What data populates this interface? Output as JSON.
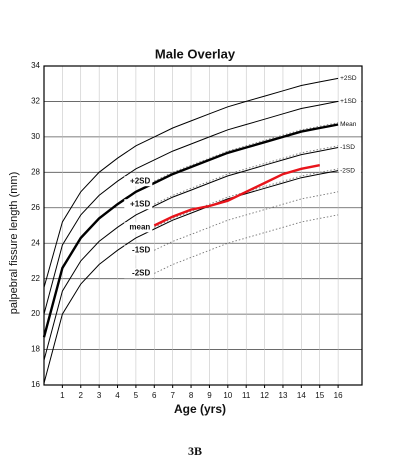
{
  "chart_data": {
    "type": "line",
    "title": "Male Overlay",
    "xlabel": "Age (yrs)",
    "ylabel": "palpebral fissure length (mm)",
    "caption": "3B",
    "x": [
      0,
      1,
      2,
      3,
      4,
      5,
      6,
      7,
      8,
      9,
      10,
      11,
      12,
      13,
      14,
      15,
      16
    ],
    "xlim": [
      0,
      17.3
    ],
    "xticks": [
      1,
      2,
      3,
      4,
      5,
      6,
      7,
      8,
      9,
      10,
      11,
      12,
      13,
      14,
      15,
      16
    ],
    "ylim": [
      16,
      34
    ],
    "yticks": [
      16,
      18,
      20,
      22,
      24,
      26,
      28,
      30,
      32,
      34
    ],
    "grid": true,
    "series": [
      {
        "name": "+2SD",
        "color": "#000000",
        "line_style": "solid",
        "label_position": "right",
        "values": [
          21.5,
          25.2,
          26.9,
          28.0,
          28.8,
          29.5,
          30.0,
          30.5,
          30.9,
          31.3,
          31.7,
          32.0,
          32.3,
          32.6,
          32.9,
          33.1,
          33.3
        ]
      },
      {
        "name": "+1SD",
        "color": "#000000",
        "line_style": "solid",
        "label_position": "right",
        "values": [
          20.0,
          23.9,
          25.6,
          26.7,
          27.5,
          28.2,
          28.7,
          29.2,
          29.6,
          30.0,
          30.4,
          30.7,
          31.0,
          31.3,
          31.6,
          31.8,
          32.0
        ]
      },
      {
        "name": "Mean",
        "color": "#000000",
        "line_style": "bold",
        "label_position": "right",
        "values": [
          18.7,
          22.6,
          24.3,
          25.4,
          26.2,
          26.9,
          27.4,
          27.9,
          28.3,
          28.7,
          29.1,
          29.4,
          29.7,
          30.0,
          30.3,
          30.5,
          30.7
        ]
      },
      {
        "name": "-1SD",
        "color": "#000000",
        "line_style": "solid",
        "label_position": "right",
        "values": [
          17.4,
          21.3,
          23.0,
          24.1,
          24.9,
          25.6,
          26.1,
          26.6,
          27.0,
          27.4,
          27.8,
          28.1,
          28.4,
          28.7,
          29.0,
          29.2,
          29.4
        ]
      },
      {
        "name": "-2SD",
        "color": "#000000",
        "line_style": "solid",
        "label_position": "right",
        "values": [
          16.1,
          20.0,
          21.7,
          22.8,
          23.6,
          24.3,
          24.8,
          25.3,
          25.7,
          26.1,
          26.5,
          26.8,
          27.1,
          27.4,
          27.7,
          27.9,
          28.1
        ]
      },
      {
        "name": "+2SD",
        "color": "#777777",
        "line_style": "dotted",
        "label_position": "left",
        "values": [
          null,
          null,
          null,
          null,
          null,
          null,
          27.5,
          28.0,
          28.4,
          28.8,
          29.2,
          29.5,
          29.8,
          30.1,
          30.4,
          30.6,
          30.8
        ]
      },
      {
        "name": "+1SD",
        "color": "#777777",
        "line_style": "dotted",
        "label_position": "left",
        "values": [
          null,
          null,
          null,
          null,
          null,
          null,
          26.2,
          26.7,
          27.1,
          27.5,
          27.9,
          28.2,
          28.5,
          28.8,
          29.1,
          29.3,
          29.5
        ]
      },
      {
        "name": "mean",
        "color": "#777777",
        "line_style": "dotted",
        "label_position": "left",
        "values": [
          null,
          null,
          null,
          null,
          null,
          null,
          24.9,
          25.4,
          25.8,
          26.2,
          26.6,
          26.9,
          27.2,
          27.5,
          27.8,
          28.0,
          28.2
        ]
      },
      {
        "name": "-1SD",
        "color": "#777777",
        "line_style": "dotted",
        "label_position": "left",
        "values": [
          null,
          null,
          null,
          null,
          null,
          null,
          23.6,
          24.1,
          24.5,
          24.9,
          25.3,
          25.6,
          25.9,
          26.2,
          26.5,
          26.7,
          26.9
        ]
      },
      {
        "name": "-2SD",
        "color": "#777777",
        "line_style": "dotted",
        "label_position": "left",
        "values": [
          null,
          null,
          null,
          null,
          null,
          null,
          22.3,
          22.8,
          23.2,
          23.6,
          24.0,
          24.3,
          24.6,
          24.9,
          25.2,
          25.4,
          25.6
        ]
      },
      {
        "color": "#e8141b",
        "line_style": "bold",
        "values": [
          null,
          null,
          null,
          null,
          null,
          null,
          25.0,
          25.5,
          25.9,
          26.1,
          26.4,
          26.9,
          27.4,
          27.9,
          28.2,
          28.4,
          null
        ]
      }
    ]
  }
}
